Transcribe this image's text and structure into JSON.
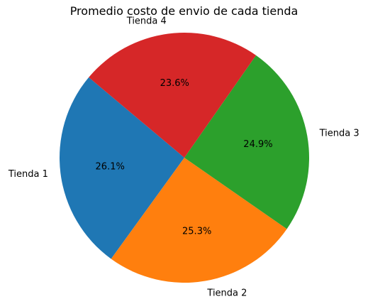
{
  "chart_data": {
    "type": "pie",
    "title": "Promedio costo de envio de cada tienda",
    "start_angle_deg": 140,
    "direction": "counterclockwise",
    "slices": [
      {
        "label": "Tienda 1",
        "value": 26.1,
        "pct_label": "26.1%",
        "color": "#1f77b4"
      },
      {
        "label": "Tienda 2",
        "value": 25.3,
        "pct_label": "25.3%",
        "color": "#ff7f0e"
      },
      {
        "label": "Tienda 3",
        "value": 24.9,
        "pct_label": "24.9%",
        "color": "#2ca02c"
      },
      {
        "label": "Tienda 4",
        "value": 23.6,
        "pct_label": "23.6%",
        "color": "#d62728"
      }
    ]
  }
}
